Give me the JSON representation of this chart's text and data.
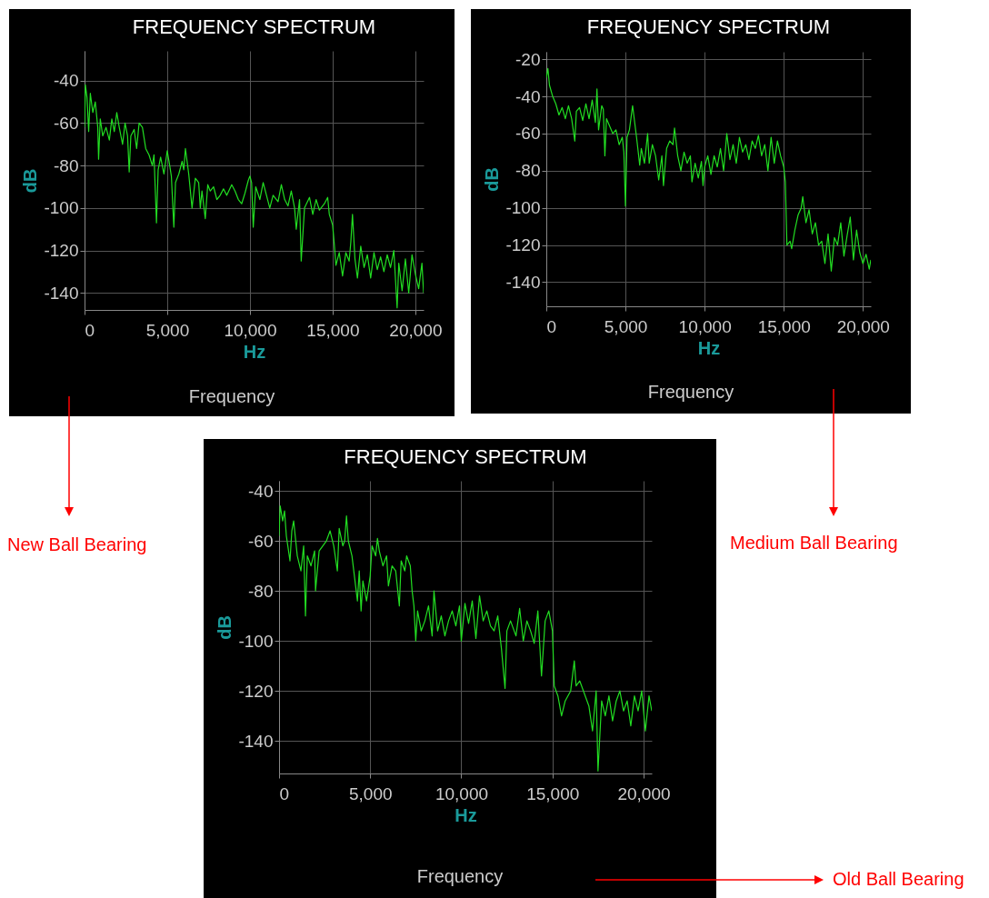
{
  "chart_data": [
    {
      "type": "line",
      "title": "FREQUENCY SPECTRUM",
      "xlabel": "Hz",
      "ylabel": "dB",
      "annotations": [
        "Frequency",
        "New Ball Bearing"
      ],
      "grid": true,
      "xlim": [
        0,
        20500
      ],
      "xticks": [
        {
          "value": 0,
          "label": "0"
        },
        {
          "value": 5000,
          "label": "5,000"
        },
        {
          "value": 10000,
          "label": "10,000"
        },
        {
          "value": 15000,
          "label": "15,000"
        },
        {
          "value": 20000,
          "label": "20,000"
        }
      ],
      "ylim": [
        -148,
        -26
      ],
      "yticks": [
        -40,
        -60,
        -80,
        -100,
        -120,
        -140
      ],
      "series": [
        {
          "color": "#22dd22",
          "x": [
            0,
            50,
            150,
            250,
            350,
            500,
            650,
            800,
            850,
            950,
            1100,
            1300,
            1500,
            1650,
            1800,
            1950,
            2100,
            2300,
            2450,
            2600,
            2700,
            2800,
            3000,
            3150,
            3300,
            3500,
            3700,
            3900,
            4100,
            4200,
            4350,
            4450,
            4600,
            4800,
            5000,
            5150,
            5250,
            5400,
            5500,
            5700,
            5900,
            6000,
            6100,
            6300,
            6500,
            6700,
            6900,
            7000,
            7100,
            7300,
            7450,
            7600,
            7800,
            8000,
            8200,
            8400,
            8600,
            8900,
            9100,
            9300,
            9500,
            9700,
            9900,
            10000,
            10100,
            10200,
            10350,
            10600,
            10800,
            11000,
            11200,
            11400,
            11700,
            11900,
            12100,
            12300,
            12500,
            12700,
            12800,
            13000,
            13100,
            13300,
            13600,
            13800,
            14000,
            14200,
            14500,
            14700,
            14800,
            15000,
            15100,
            15200,
            15400,
            15600,
            15800,
            16000,
            16100,
            16200,
            16350,
            16500,
            16700,
            16900,
            17100,
            17300,
            17500,
            17700,
            17900,
            18100,
            18300,
            18500,
            18700,
            18900,
            19000,
            19200,
            19400,
            19600,
            19800,
            20000,
            20200,
            20400,
            20500
          ],
          "values": [
            -62,
            -42,
            -48,
            -64,
            -46,
            -55,
            -50,
            -62,
            -77,
            -58,
            -66,
            -62,
            -68,
            -58,
            -64,
            -55,
            -62,
            -70,
            -60,
            -66,
            -83,
            -66,
            -63,
            -72,
            -60,
            -62,
            -72,
            -75,
            -80,
            -75,
            -107,
            -82,
            -76,
            -84,
            -73,
            -80,
            -85,
            -109,
            -88,
            -84,
            -78,
            -82,
            -72,
            -84,
            -100,
            -86,
            -88,
            -100,
            -92,
            -105,
            -89,
            -92,
            -90,
            -96,
            -94,
            -91,
            -94,
            -89,
            -92,
            -96,
            -98,
            -93,
            -87,
            -85,
            -88,
            -109,
            -90,
            -96,
            -88,
            -94,
            -100,
            -94,
            -97,
            -89,
            -96,
            -99,
            -92,
            -100,
            -110,
            -96,
            -125,
            -100,
            -95,
            -103,
            -96,
            -101,
            -98,
            -95,
            -103,
            -108,
            -117,
            -127,
            -121,
            -132,
            -121,
            -125,
            -116,
            -103,
            -124,
            -133,
            -118,
            -128,
            -122,
            -133,
            -121,
            -129,
            -123,
            -130,
            -122,
            -128,
            -120,
            -147,
            -126,
            -139,
            -124,
            -140,
            -122,
            -131,
            -138,
            -126,
            -140
          ]
        }
      ]
    },
    {
      "type": "line",
      "title": "FREQUENCY SPECTRUM",
      "xlabel": "Hz",
      "ylabel": "dB",
      "annotations": [
        "Frequency",
        "Medium Ball Bearing"
      ],
      "grid": true,
      "xlim": [
        0,
        20500
      ],
      "xticks": [
        {
          "value": 0,
          "label": "0"
        },
        {
          "value": 5000,
          "label": "5,000"
        },
        {
          "value": 10000,
          "label": "10,000"
        },
        {
          "value": 15000,
          "label": "15,000"
        },
        {
          "value": 20000,
          "label": "20,000"
        }
      ],
      "ylim": [
        -153,
        -16
      ],
      "yticks": [
        -20,
        -40,
        -60,
        -80,
        -100,
        -120,
        -140
      ],
      "series": [
        {
          "color": "#22dd22",
          "x": [
            0,
            100,
            200,
            400,
            600,
            800,
            1000,
            1200,
            1400,
            1600,
            1800,
            1900,
            2100,
            2300,
            2500,
            2700,
            2900,
            3100,
            3200,
            3300,
            3500,
            3600,
            3700,
            3800,
            4000,
            4200,
            4400,
            4600,
            4800,
            4900,
            5000,
            5100,
            5250,
            5450,
            5700,
            5900,
            6000,
            6200,
            6400,
            6500,
            6700,
            6900,
            7100,
            7300,
            7400,
            7600,
            7800,
            8000,
            8100,
            8300,
            8500,
            8700,
            8900,
            9100,
            9200,
            9400,
            9600,
            9800,
            9900,
            10000,
            10200,
            10400,
            10600,
            10800,
            11000,
            11200,
            11400,
            11600,
            11800,
            12000,
            12200,
            12400,
            12600,
            12800,
            13000,
            13200,
            13400,
            13600,
            13800,
            14000,
            14200,
            14400,
            14600,
            14800,
            15000,
            15100,
            15200,
            15400,
            15500,
            15700,
            15900,
            16100,
            16200,
            16400,
            16600,
            16800,
            17000,
            17200,
            17400,
            17600,
            17800,
            18000,
            18200,
            18400,
            18600,
            18800,
            19000,
            19200,
            19400,
            19600,
            19800,
            20000,
            20200,
            20400,
            20500
          ],
          "values": [
            -30,
            -25,
            -34,
            -40,
            -44,
            -50,
            -46,
            -52,
            -45,
            -52,
            -64,
            -48,
            -46,
            -53,
            -44,
            -52,
            -42,
            -54,
            -36,
            -58,
            -45,
            -47,
            -72,
            -52,
            -56,
            -60,
            -58,
            -66,
            -62,
            -70,
            -99,
            -62,
            -58,
            -45,
            -62,
            -77,
            -68,
            -76,
            -60,
            -76,
            -66,
            -72,
            -85,
            -72,
            -88,
            -68,
            -64,
            -66,
            -57,
            -72,
            -80,
            -70,
            -76,
            -72,
            -86,
            -76,
            -84,
            -75,
            -88,
            -78,
            -72,
            -82,
            -72,
            -78,
            -68,
            -80,
            -60,
            -74,
            -66,
            -76,
            -62,
            -70,
            -66,
            -74,
            -64,
            -68,
            -61,
            -72,
            -66,
            -80,
            -62,
            -76,
            -64,
            -72,
            -78,
            -86,
            -120,
            -118,
            -122,
            -112,
            -104,
            -100,
            -94,
            -108,
            -101,
            -114,
            -108,
            -120,
            -118,
            -130,
            -114,
            -134,
            -116,
            -120,
            -108,
            -126,
            -115,
            -105,
            -128,
            -112,
            -124,
            -130,
            -125,
            -133,
            -128
          ]
        }
      ]
    },
    {
      "type": "line",
      "title": "FREQUENCY SPECTRUM",
      "xlabel": "Hz",
      "ylabel": "dB",
      "annotations": [
        "Frequency",
        "Old Ball Bearing"
      ],
      "grid": true,
      "xlim": [
        0,
        20450
      ],
      "xticks": [
        {
          "value": 0,
          "label": "0"
        },
        {
          "value": 5000,
          "label": "5,000"
        },
        {
          "value": 10000,
          "label": "10,000"
        },
        {
          "value": 15000,
          "label": "15,000"
        },
        {
          "value": 20000,
          "label": "20,000"
        }
      ],
      "ylim": [
        -153,
        -36
      ],
      "yticks": [
        -40,
        -60,
        -80,
        -100,
        -120,
        -140
      ],
      "series": [
        {
          "color": "#22dd22",
          "x": [
            0,
            60,
            200,
            300,
            400,
            600,
            700,
            800,
            1000,
            1200,
            1350,
            1450,
            1550,
            1750,
            1950,
            2000,
            2200,
            2400,
            2600,
            2800,
            3000,
            3200,
            3300,
            3500,
            3600,
            3700,
            3800,
            4000,
            4200,
            4300,
            4400,
            4500,
            4600,
            4800,
            5000,
            5100,
            5300,
            5400,
            5500,
            5700,
            5900,
            6000,
            6200,
            6400,
            6600,
            6700,
            6900,
            7000,
            7200,
            7300,
            7400,
            7500,
            7600,
            7800,
            8000,
            8200,
            8400,
            8500,
            8700,
            8900,
            9100,
            9300,
            9500,
            9700,
            9900,
            10000,
            10200,
            10400,
            10600,
            10800,
            11000,
            11200,
            11400,
            11600,
            11800,
            12000,
            12200,
            12400,
            12500,
            12700,
            13000,
            13200,
            13400,
            13600,
            13800,
            14000,
            14200,
            14400,
            14600,
            14800,
            15000,
            15100,
            15300,
            15500,
            15700,
            16000,
            16200,
            16300,
            16500,
            16800,
            17000,
            17200,
            17400,
            17500,
            17700,
            17900,
            18100,
            18300,
            18500,
            18700,
            18900,
            19100,
            19300,
            19500,
            19700,
            19900,
            20100,
            20300,
            20450
          ],
          "values": [
            -58,
            -46,
            -52,
            -48,
            -58,
            -68,
            -56,
            -52,
            -66,
            -72,
            -62,
            -90,
            -66,
            -70,
            -64,
            -80,
            -64,
            -62,
            -60,
            -56,
            -62,
            -72,
            -55,
            -62,
            -60,
            -50,
            -60,
            -66,
            -78,
            -84,
            -72,
            -88,
            -76,
            -84,
            -74,
            -62,
            -66,
            -59,
            -64,
            -70,
            -66,
            -78,
            -70,
            -72,
            -86,
            -68,
            -72,
            -66,
            -70,
            -80,
            -86,
            -100,
            -88,
            -96,
            -92,
            -86,
            -98,
            -80,
            -96,
            -90,
            -98,
            -92,
            -88,
            -94,
            -86,
            -100,
            -85,
            -93,
            -84,
            -99,
            -82,
            -92,
            -88,
            -94,
            -96,
            -90,
            -103,
            -119,
            -96,
            -92,
            -98,
            -87,
            -100,
            -92,
            -96,
            -101,
            -88,
            -114,
            -92,
            -88,
            -96,
            -118,
            -122,
            -130,
            -124,
            -120,
            -108,
            -118,
            -116,
            -122,
            -126,
            -136,
            -120,
            -152,
            -124,
            -130,
            -122,
            -132,
            -124,
            -120,
            -128,
            -124,
            -134,
            -122,
            -128,
            -120,
            -136,
            -122,
            -128
          ]
        }
      ]
    }
  ]
}
